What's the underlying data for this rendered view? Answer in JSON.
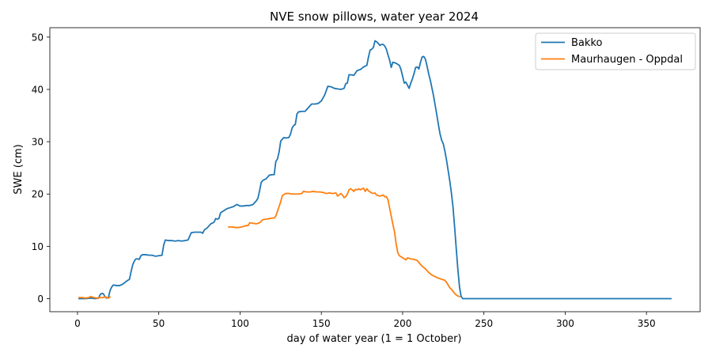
{
  "chart_data": {
    "type": "line",
    "title": "NVE snow pillows, water year 2024",
    "xlabel": "day of water year (1 = 1 October)",
    "ylabel": "SWE (cm)",
    "xlim": [
      -17,
      383
    ],
    "ylim": [
      -2.5,
      51.8
    ],
    "xticks": [
      0,
      50,
      100,
      150,
      200,
      250,
      300,
      350
    ],
    "yticks": [
      0,
      10,
      20,
      30,
      40,
      50
    ],
    "grid": false,
    "legend_position": "top-right",
    "series": [
      {
        "name": "Bakko",
        "color": "#1f77b4",
        "points": [
          [
            1,
            0
          ],
          [
            5,
            0
          ],
          [
            8,
            0.1
          ],
          [
            11,
            0
          ],
          [
            13,
            0.1
          ],
          [
            14,
            0.8
          ],
          [
            15,
            1.0
          ],
          [
            16,
            0.9
          ],
          [
            17,
            0.3
          ],
          [
            18,
            0.1
          ],
          [
            19,
            0.2
          ],
          [
            20,
            1.5
          ],
          [
            21,
            2.2
          ],
          [
            22,
            2.6
          ],
          [
            24,
            2.5
          ],
          [
            26,
            2.5
          ],
          [
            28,
            2.8
          ],
          [
            30,
            3.3
          ],
          [
            32,
            3.7
          ],
          [
            33,
            5.2
          ],
          [
            34,
            6.5
          ],
          [
            35,
            7.2
          ],
          [
            36,
            7.6
          ],
          [
            37,
            7.6
          ],
          [
            38,
            7.5
          ],
          [
            39,
            8.2
          ],
          [
            40,
            8.4
          ],
          [
            42,
            8.4
          ],
          [
            44,
            8.3
          ],
          [
            46,
            8.3
          ],
          [
            48,
            8.1
          ],
          [
            50,
            8.2
          ],
          [
            52,
            8.3
          ],
          [
            53,
            10.2
          ],
          [
            54,
            11.2
          ],
          [
            56,
            11.1
          ],
          [
            58,
            11.1
          ],
          [
            60,
            11.0
          ],
          [
            62,
            11.1
          ],
          [
            64,
            11.0
          ],
          [
            66,
            11.1
          ],
          [
            68,
            11.2
          ],
          [
            70,
            12.6
          ],
          [
            72,
            12.7
          ],
          [
            74,
            12.7
          ],
          [
            76,
            12.7
          ],
          [
            77,
            12.5
          ],
          [
            78,
            13.1
          ],
          [
            80,
            13.6
          ],
          [
            82,
            14.3
          ],
          [
            84,
            14.6
          ],
          [
            85,
            15.3
          ],
          [
            86,
            15.2
          ],
          [
            87,
            15.3
          ],
          [
            88,
            16.4
          ],
          [
            90,
            16.8
          ],
          [
            92,
            17.2
          ],
          [
            94,
            17.4
          ],
          [
            96,
            17.6
          ],
          [
            98,
            18.0
          ],
          [
            100,
            17.7
          ],
          [
            102,
            17.7
          ],
          [
            104,
            17.8
          ],
          [
            106,
            17.8
          ],
          [
            108,
            18.0
          ],
          [
            110,
            18.7
          ],
          [
            111,
            19.2
          ],
          [
            112,
            20.6
          ],
          [
            113,
            22.2
          ],
          [
            114,
            22.6
          ],
          [
            116,
            22.9
          ],
          [
            118,
            23.6
          ],
          [
            120,
            23.7
          ],
          [
            121,
            23.7
          ],
          [
            122,
            26.2
          ],
          [
            123,
            26.7
          ],
          [
            124,
            28.0
          ],
          [
            125,
            30.1
          ],
          [
            126,
            30.5
          ],
          [
            127,
            30.8
          ],
          [
            128,
            30.7
          ],
          [
            130,
            30.8
          ],
          [
            131,
            31.4
          ],
          [
            132,
            32.6
          ],
          [
            133,
            33.1
          ],
          [
            134,
            33.3
          ],
          [
            135,
            35.3
          ],
          [
            136,
            35.7
          ],
          [
            138,
            35.8
          ],
          [
            140,
            35.8
          ],
          [
            142,
            36.5
          ],
          [
            144,
            37.2
          ],
          [
            146,
            37.2
          ],
          [
            148,
            37.3
          ],
          [
            150,
            37.8
          ],
          [
            152,
            38.9
          ],
          [
            154,
            40.6
          ],
          [
            156,
            40.5
          ],
          [
            158,
            40.2
          ],
          [
            160,
            40.1
          ],
          [
            162,
            40.0
          ],
          [
            164,
            40.2
          ],
          [
            165,
            41.1
          ],
          [
            166,
            41.2
          ],
          [
            167,
            42.8
          ],
          [
            168,
            42.8
          ],
          [
            170,
            42.7
          ],
          [
            172,
            43.6
          ],
          [
            174,
            43.8
          ],
          [
            176,
            44.3
          ],
          [
            178,
            44.6
          ],
          [
            179,
            46.2
          ],
          [
            180,
            47.5
          ],
          [
            181,
            47.7
          ],
          [
            182,
            48.0
          ],
          [
            183,
            49.3
          ],
          [
            184,
            49.1
          ],
          [
            185,
            48.8
          ],
          [
            186,
            48.4
          ],
          [
            187,
            48.6
          ],
          [
            188,
            48.6
          ],
          [
            189,
            48.3
          ],
          [
            190,
            47.7
          ],
          [
            191,
            46.6
          ],
          [
            192,
            45.6
          ],
          [
            193,
            44.2
          ],
          [
            194,
            45.2
          ],
          [
            196,
            45.0
          ],
          [
            198,
            44.6
          ],
          [
            199,
            43.8
          ],
          [
            200,
            42.5
          ],
          [
            201,
            41.2
          ],
          [
            202,
            41.4
          ],
          [
            203,
            40.8
          ],
          [
            204,
            40.2
          ],
          [
            205,
            41.2
          ],
          [
            206,
            42.0
          ],
          [
            207,
            43.0
          ],
          [
            208,
            44.2
          ],
          [
            209,
            44.3
          ],
          [
            210,
            43.9
          ],
          [
            211,
            45.2
          ],
          [
            212,
            46.2
          ],
          [
            213,
            46.3
          ],
          [
            214,
            45.8
          ],
          [
            215,
            44.5
          ],
          [
            216,
            43.0
          ],
          [
            217,
            41.8
          ],
          [
            218,
            40.3
          ],
          [
            219,
            38.8
          ],
          [
            220,
            37.0
          ],
          [
            221,
            35.2
          ],
          [
            222,
            33.3
          ],
          [
            223,
            31.5
          ],
          [
            224,
            30.3
          ],
          [
            225,
            29.6
          ],
          [
            226,
            28.2
          ],
          [
            227,
            26.5
          ],
          [
            228,
            24.5
          ],
          [
            229,
            22.5
          ],
          [
            230,
            20.2
          ],
          [
            231,
            17.5
          ],
          [
            232,
            13.6
          ],
          [
            233,
            9.5
          ],
          [
            234,
            5.5
          ],
          [
            235,
            2.2
          ],
          [
            236,
            0.4
          ],
          [
            237,
            0
          ],
          [
            250,
            0
          ],
          [
            300,
            0
          ],
          [
            350,
            0
          ],
          [
            365,
            0
          ]
        ]
      },
      {
        "name": "Maurhaugen - Oppdal",
        "color": "#ff7f0e",
        "segments": [
          [
            [
              1,
              0.2
            ],
            [
              3,
              0.2
            ],
            [
              5,
              0.1
            ],
            [
              7,
              0.2
            ],
            [
              8,
              0.4
            ],
            [
              10,
              0.2
            ],
            [
              12,
              0.1
            ],
            [
              14,
              0.2
            ],
            [
              16,
              0.2
            ],
            [
              17,
              0.4
            ],
            [
              18,
              0.2
            ],
            [
              19,
              0.1
            ],
            [
              20,
              0.3
            ]
          ],
          [
            [
              93,
              13.7
            ],
            [
              95,
              13.7
            ],
            [
              97,
              13.6
            ],
            [
              99,
              13.6
            ],
            [
              101,
              13.7
            ],
            [
              103,
              13.9
            ],
            [
              105,
              14.0
            ],
            [
              106,
              14.5
            ],
            [
              108,
              14.4
            ],
            [
              110,
              14.3
            ],
            [
              112,
              14.5
            ],
            [
              114,
              15.1
            ],
            [
              116,
              15.2
            ],
            [
              118,
              15.3
            ],
            [
              120,
              15.4
            ],
            [
              121,
              15.4
            ],
            [
              122,
              15.8
            ],
            [
              123,
              16.7
            ],
            [
              124,
              17.6
            ],
            [
              125,
              18.5
            ],
            [
              126,
              19.7
            ],
            [
              128,
              20.1
            ],
            [
              130,
              20.1
            ],
            [
              132,
              20.0
            ],
            [
              134,
              20.0
            ],
            [
              136,
              20.0
            ],
            [
              138,
              20.1
            ],
            [
              139,
              20.5
            ],
            [
              141,
              20.4
            ],
            [
              143,
              20.4
            ],
            [
              145,
              20.5
            ],
            [
              147,
              20.4
            ],
            [
              149,
              20.4
            ],
            [
              151,
              20.3
            ],
            [
              153,
              20.1
            ],
            [
              155,
              20.2
            ],
            [
              157,
              20.1
            ],
            [
              159,
              20.2
            ],
            [
              160,
              19.6
            ],
            [
              162,
              20.1
            ],
            [
              163,
              19.8
            ],
            [
              164,
              19.3
            ],
            [
              165,
              19.5
            ],
            [
              166,
              20.0
            ],
            [
              167,
              20.8
            ],
            [
              168,
              21.0
            ],
            [
              169,
              20.8
            ],
            [
              170,
              20.5
            ],
            [
              171,
              20.9
            ],
            [
              172,
              20.8
            ],
            [
              173,
              21.0
            ],
            [
              174,
              20.8
            ],
            [
              175,
              21.0
            ],
            [
              176,
              21.1
            ],
            [
              177,
              20.5
            ],
            [
              178,
              21.0
            ],
            [
              179,
              20.6
            ],
            [
              180,
              20.4
            ],
            [
              181,
              20.2
            ],
            [
              182,
              20.1
            ],
            [
              183,
              20.2
            ],
            [
              184,
              19.8
            ],
            [
              185,
              19.7
            ],
            [
              186,
              19.6
            ],
            [
              187,
              19.7
            ],
            [
              188,
              19.8
            ],
            [
              189,
              19.5
            ],
            [
              190,
              19.5
            ],
            [
              191,
              18.9
            ],
            [
              192,
              17.3
            ],
            [
              193,
              15.8
            ],
            [
              194,
              14.2
            ],
            [
              195,
              12.8
            ],
            [
              196,
              10.5
            ],
            [
              197,
              8.8
            ],
            [
              198,
              8.2
            ],
            [
              200,
              7.8
            ],
            [
              202,
              7.4
            ],
            [
              203,
              7.8
            ],
            [
              205,
              7.6
            ],
            [
              207,
              7.5
            ],
            [
              209,
              7.3
            ],
            [
              210,
              6.9
            ],
            [
              212,
              6.2
            ],
            [
              214,
              5.7
            ],
            [
              216,
              5.0
            ],
            [
              218,
              4.5
            ],
            [
              220,
              4.2
            ],
            [
              222,
              3.9
            ],
            [
              224,
              3.7
            ],
            [
              226,
              3.5
            ],
            [
              227,
              3.1
            ],
            [
              228,
              2.6
            ],
            [
              229,
              2.1
            ],
            [
              230,
              1.8
            ],
            [
              231,
              1.4
            ],
            [
              232,
              1.0
            ],
            [
              233,
              0.7
            ],
            [
              234,
              0.5
            ],
            [
              235,
              0.4
            ]
          ]
        ]
      }
    ]
  }
}
